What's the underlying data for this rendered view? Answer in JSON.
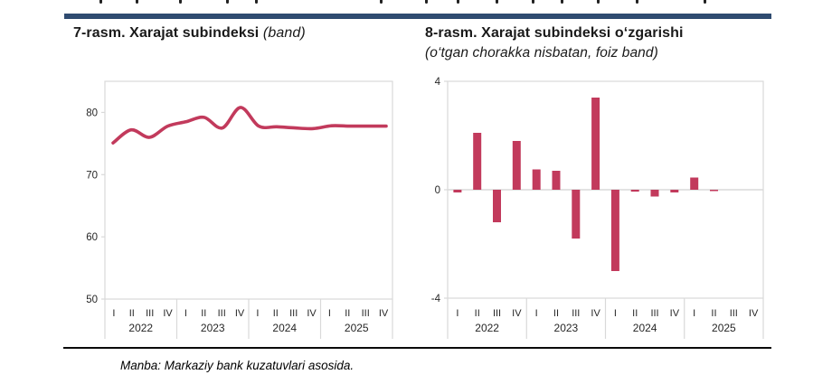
{
  "page": {
    "accent_color": "#c23a5c",
    "navy_bar_color": "#2f4b70",
    "axis_color": "#d9d9d9",
    "footer_source": "Manba: Markaziy bank kuzatuvlari asosida."
  },
  "left_chart": {
    "title_main": "7-rasm. Xarajat subindeksi",
    "title_note": "(band)"
  },
  "right_chart": {
    "title_line1": "8-rasm. Xarajat subindeksi o‘zgarishi",
    "title_line2": "(o‘tgan chorakka nisbatan, foiz band)"
  },
  "chart_data": [
    {
      "type": "line",
      "title": "7-rasm. Xarajat subindeksi (band)",
      "quarters": [
        "I",
        "II",
        "III",
        "IV"
      ],
      "years": [
        "2022",
        "2023",
        "2024",
        "2025"
      ],
      "categories": [
        "2022 I",
        "2022 II",
        "2022 III",
        "2022 IV",
        "2023 I",
        "2023 II",
        "2023 III",
        "2023 IV",
        "2024 I",
        "2024 II",
        "2024 III",
        "2024 IV",
        "2025 I",
        "2025 II",
        "2025 III",
        "2025 IV"
      ],
      "values": [
        75.1,
        77.2,
        76.0,
        77.8,
        78.5,
        79.2,
        77.5,
        80.8,
        77.8,
        77.7,
        77.5,
        77.4,
        77.85,
        77.8,
        77.8,
        77.8
      ],
      "ylim": [
        50,
        85
      ],
      "yticks": [
        80,
        70,
        60,
        50
      ],
      "grid": false,
      "legend": "none",
      "line_color": "#c23a5c"
    },
    {
      "type": "bar",
      "title": "8-rasm. Xarajat subindeksi o‘zgarishi (o‘tgan chorakka nisbatan, foiz band)",
      "quarters": [
        "I",
        "II",
        "III",
        "IV"
      ],
      "years": [
        "2022",
        "2023",
        "2024",
        "2025"
      ],
      "categories": [
        "2022 I",
        "2022 II",
        "2022 III",
        "2022 IV",
        "2023 I",
        "2023 II",
        "2023 III",
        "2023 IV",
        "2024 I",
        "2024 II",
        "2024 III",
        "2024 IV",
        "2025 I",
        "2025 II",
        "2025 III",
        "2025 IV"
      ],
      "values": [
        -0.1,
        2.1,
        -1.2,
        1.8,
        0.75,
        0.7,
        -1.8,
        3.4,
        -3.0,
        -0.07,
        -0.25,
        -0.1,
        0.45,
        -0.05,
        0,
        0
      ],
      "ylim": [
        -4,
        4
      ],
      "yticks": [
        4,
        0,
        -4
      ],
      "grid": false,
      "legend": "none",
      "bar_color": "#c23a5c"
    }
  ]
}
